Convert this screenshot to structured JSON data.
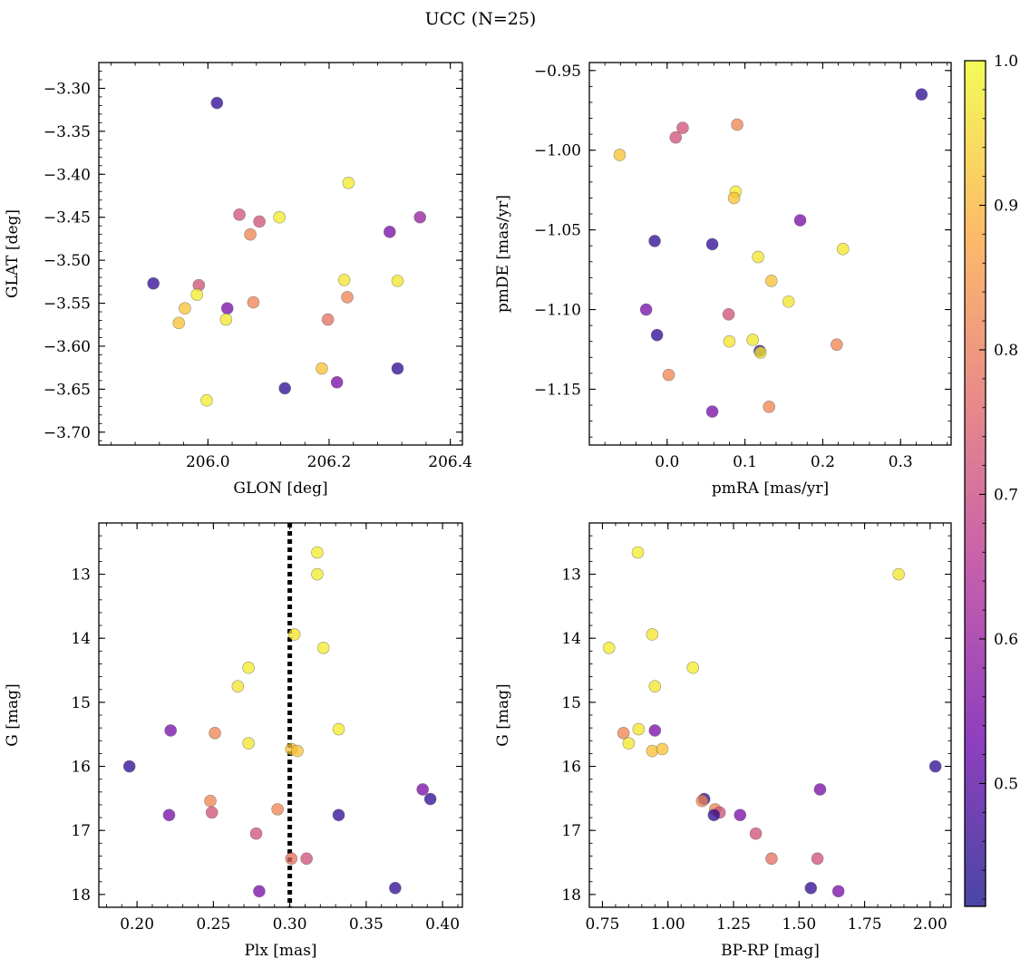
{
  "figure": {
    "title": "UCC (N=25)"
  },
  "colorbar": {
    "range": [
      0.415,
      1.0
    ],
    "ticks": [
      "0.5",
      "0.6",
      "0.7",
      "0.8",
      "0.9",
      "1.0"
    ],
    "tick_values": [
      0.5,
      0.6,
      0.7,
      0.8,
      0.9,
      1.0
    ],
    "colormap": "plasma",
    "colors": [
      "#0d0887",
      "#6a00a8",
      "#b12a90",
      "#e16462",
      "#fca636",
      "#f0f921"
    ],
    "alpha": 0.75
  },
  "chart_data": [
    {
      "type": "scatter",
      "title": "",
      "xlabel": "GLON [deg]",
      "ylabel": "GLAT [deg]",
      "xlim": [
        205.82,
        206.42
      ],
      "ylim": [
        -3.715,
        -3.27
      ],
      "x_ticks": [
        "206.0",
        "206.2",
        "206.4"
      ],
      "x_tick_values": [
        206.0,
        206.2,
        206.4
      ],
      "y_ticks": [
        "−3.30",
        "−3.35",
        "−3.40",
        "−3.45",
        "−3.50",
        "−3.55",
        "−3.60",
        "−3.65",
        "−3.70"
      ],
      "y_tick_values": [
        -3.3,
        -3.35,
        -3.4,
        -3.45,
        -3.5,
        -3.55,
        -3.6,
        -3.65,
        -3.7
      ],
      "points": [
        {
          "x": 206.015,
          "y": -3.317,
          "c": 0.45
        },
        {
          "x": 206.232,
          "y": -3.41,
          "c": 0.98
        },
        {
          "x": 206.118,
          "y": -3.45,
          "c": 0.98
        },
        {
          "x": 206.052,
          "y": -3.447,
          "c": 0.72
        },
        {
          "x": 206.085,
          "y": -3.455,
          "c": 0.72
        },
        {
          "x": 206.07,
          "y": -3.47,
          "c": 0.82
        },
        {
          "x": 206.35,
          "y": -3.45,
          "c": 0.6
        },
        {
          "x": 206.3,
          "y": -3.467,
          "c": 0.55
        },
        {
          "x": 205.985,
          "y": -3.529,
          "c": 0.72
        },
        {
          "x": 205.91,
          "y": -3.527,
          "c": 0.45
        },
        {
          "x": 205.982,
          "y": -3.54,
          "c": 0.98
        },
        {
          "x": 206.225,
          "y": -3.523,
          "c": 0.97
        },
        {
          "x": 206.313,
          "y": -3.524,
          "c": 0.97
        },
        {
          "x": 206.23,
          "y": -3.543,
          "c": 0.82
        },
        {
          "x": 205.962,
          "y": -3.556,
          "c": 0.92
        },
        {
          "x": 206.032,
          "y": -3.556,
          "c": 0.55
        },
        {
          "x": 206.075,
          "y": -3.549,
          "c": 0.82
        },
        {
          "x": 205.952,
          "y": -3.573,
          "c": 0.92
        },
        {
          "x": 206.03,
          "y": -3.569,
          "c": 0.97
        },
        {
          "x": 206.198,
          "y": -3.569,
          "c": 0.78
        },
        {
          "x": 206.188,
          "y": -3.626,
          "c": 0.92
        },
        {
          "x": 206.313,
          "y": -3.626,
          "c": 0.45
        },
        {
          "x": 206.213,
          "y": -3.642,
          "c": 0.55
        },
        {
          "x": 206.127,
          "y": -3.649,
          "c": 0.45
        },
        {
          "x": 205.998,
          "y": -3.663,
          "c": 0.98
        }
      ]
    },
    {
      "type": "scatter",
      "title": "",
      "xlabel": "pmRA [mas/yr]",
      "ylabel": "pmDE [mas/yr]",
      "xlim": [
        -0.1,
        0.365
      ],
      "ylim": [
        -1.185,
        -0.945
      ],
      "x_ticks": [
        "0.0",
        "0.1",
        "0.2",
        "0.3"
      ],
      "x_tick_values": [
        0.0,
        0.1,
        0.2,
        0.3
      ],
      "y_ticks": [
        "−0.95",
        "−1.00",
        "−1.05",
        "−1.10",
        "−1.15"
      ],
      "y_tick_values": [
        -0.95,
        -1.0,
        -1.05,
        -1.1,
        -1.15
      ],
      "points": [
        {
          "x": 0.327,
          "y": -0.965,
          "c": 0.45
        },
        {
          "x": 0.09,
          "y": -0.984,
          "c": 0.82
        },
        {
          "x": 0.02,
          "y": -0.986,
          "c": 0.72
        },
        {
          "x": 0.011,
          "y": -0.992,
          "c": 0.72
        },
        {
          "x": -0.061,
          "y": -1.003,
          "c": 0.92
        },
        {
          "x": 0.088,
          "y": -1.026,
          "c": 0.98
        },
        {
          "x": 0.086,
          "y": -1.03,
          "c": 0.92
        },
        {
          "x": 0.171,
          "y": -1.044,
          "c": 0.55
        },
        {
          "x": -0.016,
          "y": -1.057,
          "c": 0.45
        },
        {
          "x": 0.058,
          "y": -1.059,
          "c": 0.45
        },
        {
          "x": 0.226,
          "y": -1.062,
          "c": 0.97
        },
        {
          "x": 0.117,
          "y": -1.067,
          "c": 0.97
        },
        {
          "x": 0.134,
          "y": -1.082,
          "c": 0.92
        },
        {
          "x": 0.156,
          "y": -1.095,
          "c": 0.97
        },
        {
          "x": -0.027,
          "y": -1.1,
          "c": 0.55
        },
        {
          "x": 0.079,
          "y": -1.103,
          "c": 0.72
        },
        {
          "x": -0.013,
          "y": -1.116,
          "c": 0.45
        },
        {
          "x": 0.08,
          "y": -1.12,
          "c": 0.97
        },
        {
          "x": 0.11,
          "y": -1.119,
          "c": 0.97
        },
        {
          "x": 0.119,
          "y": -1.126,
          "c": 0.45
        },
        {
          "x": 0.12,
          "y": -1.127,
          "c": 0.97
        },
        {
          "x": 0.218,
          "y": -1.122,
          "c": 0.82
        },
        {
          "x": 0.002,
          "y": -1.141,
          "c": 0.82
        },
        {
          "x": 0.131,
          "y": -1.161,
          "c": 0.82
        },
        {
          "x": 0.058,
          "y": -1.164,
          "c": 0.55
        }
      ]
    },
    {
      "type": "scatter",
      "title": "",
      "xlabel": "Plx [mas]",
      "ylabel": "G [mag]",
      "xlim": [
        0.175,
        0.413
      ],
      "ylim": [
        18.2,
        12.2
      ],
      "y_inverted": true,
      "x_ticks": [
        "0.20",
        "0.25",
        "0.30",
        "0.35",
        "0.40"
      ],
      "x_tick_values": [
        0.2,
        0.25,
        0.3,
        0.35,
        0.4
      ],
      "y_ticks": [
        "13",
        "14",
        "15",
        "16",
        "17",
        "18"
      ],
      "y_tick_values": [
        13,
        14,
        15,
        16,
        17,
        18
      ],
      "vline": {
        "x": 0.3,
        "style": "dotted"
      },
      "points": [
        {
          "x": 0.318,
          "y": 12.66,
          "c": 0.98
        },
        {
          "x": 0.318,
          "y": 13.0,
          "c": 0.98
        },
        {
          "x": 0.303,
          "y": 13.94,
          "c": 0.97
        },
        {
          "x": 0.322,
          "y": 14.15,
          "c": 0.98
        },
        {
          "x": 0.273,
          "y": 14.46,
          "c": 0.98
        },
        {
          "x": 0.266,
          "y": 14.75,
          "c": 0.97
        },
        {
          "x": 0.222,
          "y": 15.44,
          "c": 0.55
        },
        {
          "x": 0.251,
          "y": 15.48,
          "c": 0.82
        },
        {
          "x": 0.332,
          "y": 15.42,
          "c": 0.98
        },
        {
          "x": 0.273,
          "y": 15.64,
          "c": 0.97
        },
        {
          "x": 0.301,
          "y": 15.73,
          "c": 0.92
        },
        {
          "x": 0.305,
          "y": 15.76,
          "c": 0.92
        },
        {
          "x": 0.195,
          "y": 16.0,
          "c": 0.45
        },
        {
          "x": 0.387,
          "y": 16.36,
          "c": 0.55
        },
        {
          "x": 0.392,
          "y": 16.51,
          "c": 0.45
        },
        {
          "x": 0.248,
          "y": 16.54,
          "c": 0.82
        },
        {
          "x": 0.292,
          "y": 16.67,
          "c": 0.82
        },
        {
          "x": 0.249,
          "y": 16.72,
          "c": 0.72
        },
        {
          "x": 0.221,
          "y": 16.76,
          "c": 0.55
        },
        {
          "x": 0.332,
          "y": 16.76,
          "c": 0.45
        },
        {
          "x": 0.278,
          "y": 17.05,
          "c": 0.72
        },
        {
          "x": 0.301,
          "y": 17.44,
          "c": 0.78
        },
        {
          "x": 0.311,
          "y": 17.44,
          "c": 0.72
        },
        {
          "x": 0.369,
          "y": 17.9,
          "c": 0.45
        },
        {
          "x": 0.28,
          "y": 17.95,
          "c": 0.55
        }
      ]
    },
    {
      "type": "scatter",
      "title": "",
      "xlabel": "BP-RP [mag]",
      "ylabel": "G [mag]",
      "xlim": [
        0.7,
        2.08
      ],
      "ylim": [
        18.2,
        12.2
      ],
      "y_inverted": true,
      "x_ticks": [
        "0.75",
        "1.00",
        "1.25",
        "1.50",
        "1.75",
        "2.00"
      ],
      "x_tick_values": [
        0.75,
        1.0,
        1.25,
        1.5,
        1.75,
        2.0
      ],
      "y_ticks": [
        "13",
        "14",
        "15",
        "16",
        "17",
        "18"
      ],
      "y_tick_values": [
        13,
        14,
        15,
        16,
        17,
        18
      ],
      "points": [
        {
          "x": 0.885,
          "y": 12.66,
          "c": 0.98
        },
        {
          "x": 1.88,
          "y": 13.0,
          "c": 0.97
        },
        {
          "x": 0.94,
          "y": 13.94,
          "c": 0.97
        },
        {
          "x": 0.775,
          "y": 14.15,
          "c": 0.98
        },
        {
          "x": 1.095,
          "y": 14.46,
          "c": 0.98
        },
        {
          "x": 0.95,
          "y": 14.75,
          "c": 0.97
        },
        {
          "x": 0.83,
          "y": 15.48,
          "c": 0.82
        },
        {
          "x": 0.888,
          "y": 15.42,
          "c": 0.97
        },
        {
          "x": 0.95,
          "y": 15.44,
          "c": 0.55
        },
        {
          "x": 0.85,
          "y": 15.64,
          "c": 0.97
        },
        {
          "x": 0.94,
          "y": 15.76,
          "c": 0.92
        },
        {
          "x": 0.978,
          "y": 15.73,
          "c": 0.92
        },
        {
          "x": 2.02,
          "y": 16.0,
          "c": 0.45
        },
        {
          "x": 1.58,
          "y": 16.36,
          "c": 0.55
        },
        {
          "x": 1.138,
          "y": 16.51,
          "c": 0.45
        },
        {
          "x": 1.13,
          "y": 16.54,
          "c": 0.82
        },
        {
          "x": 1.18,
          "y": 16.67,
          "c": 0.82
        },
        {
          "x": 1.197,
          "y": 16.72,
          "c": 0.72
        },
        {
          "x": 1.175,
          "y": 16.76,
          "c": 0.45
        },
        {
          "x": 1.275,
          "y": 16.76,
          "c": 0.55
        },
        {
          "x": 1.335,
          "y": 17.05,
          "c": 0.72
        },
        {
          "x": 1.395,
          "y": 17.44,
          "c": 0.78
        },
        {
          "x": 1.57,
          "y": 17.44,
          "c": 0.72
        },
        {
          "x": 1.545,
          "y": 17.9,
          "c": 0.45
        },
        {
          "x": 1.65,
          "y": 17.95,
          "c": 0.55
        }
      ]
    }
  ]
}
